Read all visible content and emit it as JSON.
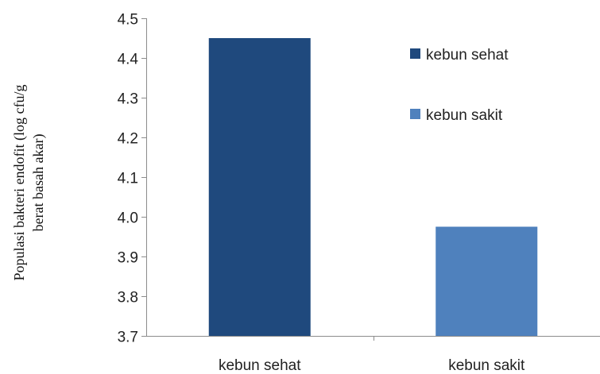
{
  "chart_data": {
    "type": "bar",
    "categories": [
      "kebun sehat",
      "kebun sakit"
    ],
    "series": [
      {
        "name": "kebun sehat",
        "category": "kebun sehat",
        "value": 4.45,
        "color": "#1f497d"
      },
      {
        "name": "kebun sakit",
        "category": "kebun sakit",
        "value": 3.975,
        "color": "#4f81bd"
      }
    ],
    "ylabel_lines": [
      "Populasi bakteri endofit (log cfu/g",
      "berat basah akar)"
    ],
    "ylim": [
      3.7,
      4.5
    ],
    "yticks": [
      "3.7",
      "3.8",
      "3.9",
      "4.0",
      "4.1",
      "4.2",
      "4.3",
      "4.4",
      "4.5"
    ],
    "grid": false,
    "legend_position": "top-right"
  }
}
